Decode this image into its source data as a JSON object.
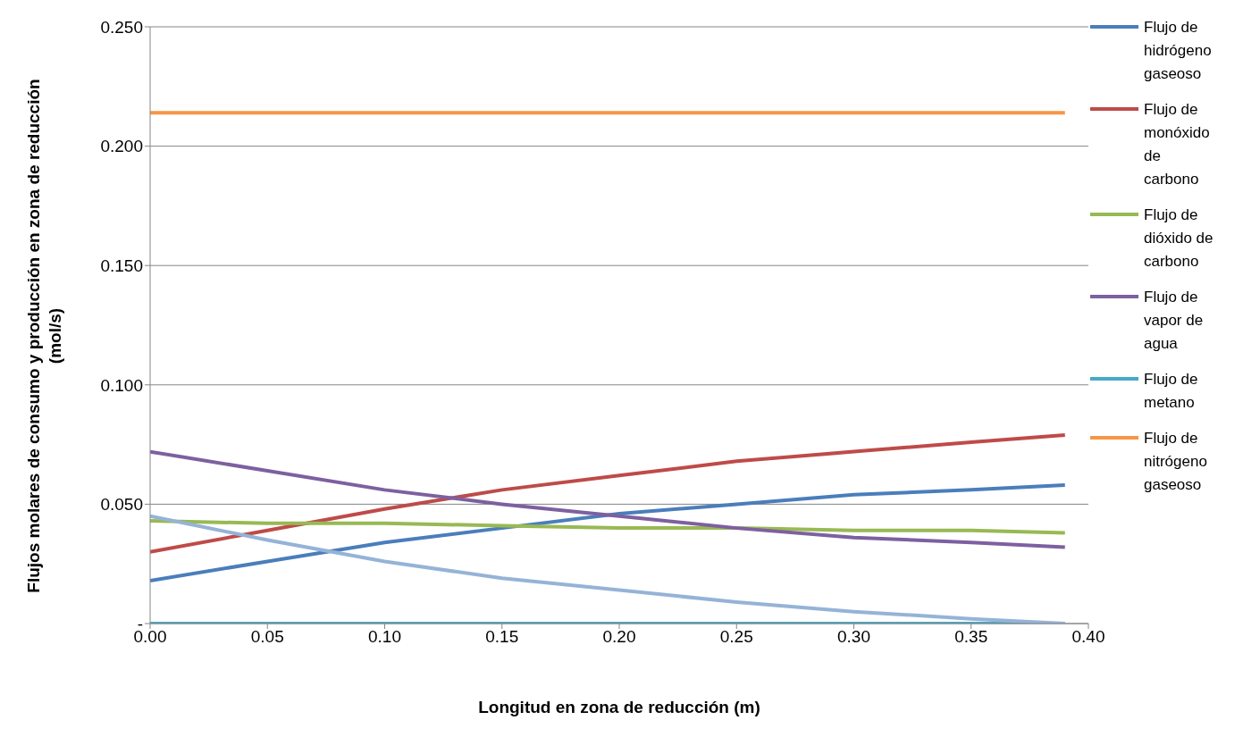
{
  "chart_data": {
    "type": "line",
    "xlabel": "Longitud en zona de reducción (m)",
    "ylabel": "Flujos molares de consumo y producción en zona de reducción (mol/s)",
    "x": [
      0,
      0.05,
      0.1,
      0.15,
      0.2,
      0.25,
      0.3,
      0.35,
      0.39
    ],
    "series": [
      {
        "name": "Flujo de hidrógeno gaseoso",
        "color": "#4a7ebb",
        "values": [
          0.018,
          0.026,
          0.034,
          0.04,
          0.046,
          0.05,
          0.054,
          0.056,
          0.058
        ]
      },
      {
        "name": "Flujo de monóxido de carbono",
        "color": "#be4b48",
        "values": [
          0.03,
          0.039,
          0.048,
          0.056,
          0.062,
          0.068,
          0.072,
          0.076,
          0.079
        ]
      },
      {
        "name": "Flujo de dióxido de carbono",
        "color": "#98b954",
        "values": [
          0.043,
          0.042,
          0.042,
          0.041,
          0.04,
          0.04,
          0.039,
          0.039,
          0.038
        ]
      },
      {
        "name": "Flujo de vapor de agua",
        "color": "#7d60a0",
        "values": [
          0.072,
          0.064,
          0.056,
          0.05,
          0.045,
          0.04,
          0.036,
          0.034,
          0.032
        ]
      },
      {
        "name": "Flujo de metano",
        "color": "#46aac5",
        "values": [
          0,
          0,
          0,
          0,
          0,
          0,
          0,
          0,
          0
        ]
      },
      {
        "name": "Flujo de nitrógeno gaseoso",
        "color": "#f79646",
        "values": [
          0.214,
          0.214,
          0.214,
          0.214,
          0.214,
          0.214,
          0.214,
          0.214,
          0.214
        ]
      },
      {
        "color": "#95b3d7",
        "values": [
          0.045,
          0.035,
          0.026,
          0.019,
          0.014,
          0.009,
          0.005,
          0.002,
          0
        ]
      }
    ],
    "xlim": [
      0,
      0.4
    ],
    "xticks": [
      {
        "value": 0,
        "label": "0.00"
      },
      {
        "value": 0.05,
        "label": "0.05"
      },
      {
        "value": 0.1,
        "label": "0.10"
      },
      {
        "value": 0.15,
        "label": "0.15"
      },
      {
        "value": 0.2,
        "label": "0.20"
      },
      {
        "value": 0.25,
        "label": "0.25"
      },
      {
        "value": 0.3,
        "label": "0.30"
      },
      {
        "value": 0.35,
        "label": "0.35"
      },
      {
        "value": 0.4,
        "label": "0.40"
      }
    ],
    "ylim": [
      0,
      0.25
    ],
    "yticks": [
      {
        "value": 0,
        "label": "-"
      },
      {
        "value": 0.05,
        "label": "0.050"
      },
      {
        "value": 0.1,
        "label": "0.100"
      },
      {
        "value": 0.15,
        "label": "0.150"
      },
      {
        "value": 0.2,
        "label": "0.200"
      },
      {
        "value": 0.25,
        "label": "0.250"
      }
    ],
    "grid": "y",
    "legend": "right",
    "marker": "none",
    "line_style": "solid"
  }
}
